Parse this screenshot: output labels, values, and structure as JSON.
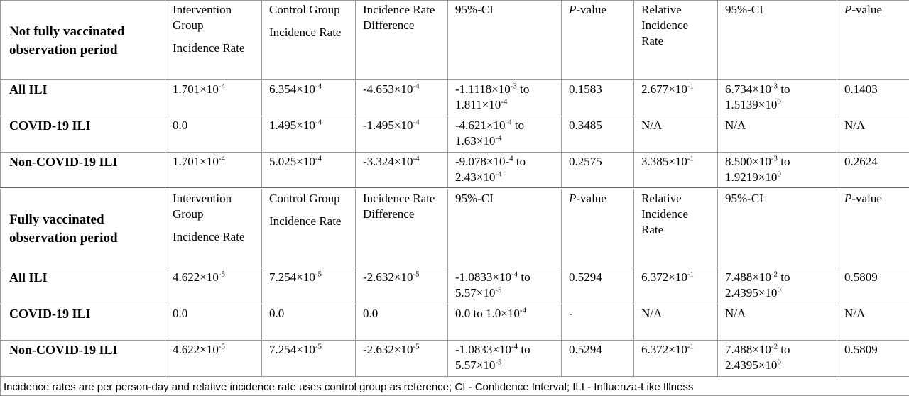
{
  "sections": [
    {
      "title": "Not fully vaccinated observation period",
      "header": [
        [
          "Intervention Group",
          "Incidence Rate"
        ],
        [
          "Control Group",
          "Incidence Rate"
        ],
        [
          "Incidence Rate Difference"
        ],
        [
          "95%-CI"
        ],
        [
          [
            {
              "i": "P"
            },
            "-value"
          ]
        ],
        [
          "Relative Incidence Rate"
        ],
        [
          "95%-CI"
        ],
        [
          [
            {
              "i": "P"
            },
            "-value"
          ]
        ]
      ],
      "rows": [
        {
          "label": "All ILI",
          "cells": [
            [
              "1.701×10",
              {
                "sup": "-4"
              }
            ],
            [
              "6.354×10",
              {
                "sup": "-4"
              }
            ],
            [
              "-4.653×10",
              {
                "sup": "-4"
              }
            ],
            [
              "-1.1118×10",
              {
                "sup": "-3"
              },
              " to ",
              "1.811×10",
              {
                "sup": "-4"
              }
            ],
            [
              "0.1583"
            ],
            [
              "2.677×10",
              {
                "sup": "-1"
              }
            ],
            [
              "6.734×10",
              {
                "sup": "-3"
              },
              " to ",
              "1.5139×10",
              {
                "sup": "0"
              }
            ],
            [
              "0.1403"
            ]
          ]
        },
        {
          "label": "COVID-19 ILI",
          "cells": [
            [
              "0.0"
            ],
            [
              "1.495×10",
              {
                "sup": "-4"
              }
            ],
            [
              "-1.495×10",
              {
                "sup": "-4"
              }
            ],
            [
              "-4.621×10",
              {
                "sup": "-4"
              },
              " to ",
              "1.63×10",
              {
                "sup": "-4"
              }
            ],
            [
              "0.3485"
            ],
            [
              "N/A"
            ],
            [
              "N/A"
            ],
            [
              "N/A"
            ]
          ]
        },
        {
          "label": "Non-COVID-19 ILI",
          "cells": [
            [
              "1.701×10",
              {
                "sup": "-4"
              }
            ],
            [
              "5.025×10",
              {
                "sup": "-4"
              }
            ],
            [
              "-3.324×10",
              {
                "sup": "-4"
              }
            ],
            [
              "-9.078×10-",
              {
                "sup": "4"
              },
              " to ",
              "2.43×10",
              {
                "sup": "-4"
              }
            ],
            [
              "0.2575"
            ],
            [
              "3.385×10",
              {
                "sup": "-1"
              }
            ],
            [
              "8.500×10",
              {
                "sup": "-3"
              },
              " to ",
              "1.9219×10",
              {
                "sup": "0"
              }
            ],
            [
              "0.2624"
            ]
          ]
        }
      ]
    },
    {
      "title": "Fully vaccinated observation period",
      "header": [
        [
          "Intervention Group",
          "Incidence Rate"
        ],
        [
          "Control Group",
          "Incidence Rate"
        ],
        [
          "Incidence Rate Difference"
        ],
        [
          "95%-CI"
        ],
        [
          [
            {
              "i": "P"
            },
            "-value"
          ]
        ],
        [
          "Relative Incidence Rate"
        ],
        [
          "95%-CI"
        ],
        [
          [
            {
              "i": "P"
            },
            "-value"
          ]
        ]
      ],
      "rows": [
        {
          "label": "All ILI",
          "cells": [
            [
              "4.622×10",
              {
                "sup": "-5"
              }
            ],
            [
              "7.254×10",
              {
                "sup": "-5"
              }
            ],
            [
              "-2.632×10",
              {
                "sup": "-5"
              }
            ],
            [
              "-1.0833×10",
              {
                "sup": "-4"
              },
              " to ",
              "5.57×10",
              {
                "sup": "-5"
              }
            ],
            [
              "0.5294"
            ],
            [
              "6.372×10",
              {
                "sup": "-1"
              }
            ],
            [
              "7.488×10",
              {
                "sup": "-2"
              },
              " to ",
              "2.4395×10",
              {
                "sup": "0"
              }
            ],
            [
              "0.5809"
            ]
          ]
        },
        {
          "label": "COVID-19 ILI",
          "cells": [
            [
              "0.0"
            ],
            [
              "0.0"
            ],
            [
              "0.0"
            ],
            [
              "0.0 to ",
              "1.0×10",
              {
                "sup": "-4"
              }
            ],
            [
              "-"
            ],
            [
              "N/A"
            ],
            [
              "N/A"
            ],
            [
              "N/A"
            ]
          ]
        },
        {
          "label": "Non-COVID-19 ILI",
          "cells": [
            [
              "4.622×10",
              {
                "sup": "-5"
              }
            ],
            [
              "7.254×10",
              {
                "sup": "-5"
              }
            ],
            [
              "-2.632×10",
              {
                "sup": "-5"
              }
            ],
            [
              "-1.0833×10",
              {
                "sup": "-4"
              },
              " to ",
              "5.57×10",
              {
                "sup": "-5"
              }
            ],
            [
              "0.5294"
            ],
            [
              "6.372×10",
              {
                "sup": "-1"
              }
            ],
            [
              "7.488×10",
              {
                "sup": "-2"
              },
              " to ",
              "2.4395×10",
              {
                "sup": "0"
              }
            ],
            [
              "0.5809"
            ]
          ]
        }
      ]
    }
  ],
  "footer": "Incidence rates are per person-day and relative incidence rate uses control group as reference; CI - Confidence Interval; ILI - Influenza-Like Illness"
}
